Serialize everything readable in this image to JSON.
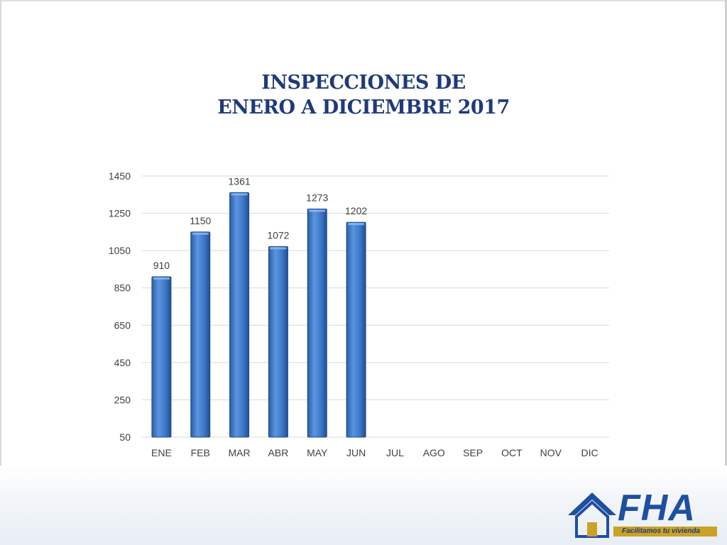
{
  "slide": {
    "title_line1": "INSPECCIONES DE",
    "title_line2": "ENERO A DICIEMBRE 2017"
  },
  "chart_data": {
    "type": "bar",
    "categories": [
      "ENE",
      "FEB",
      "MAR",
      "ABR",
      "MAY",
      "JUN",
      "JUL",
      "AGO",
      "SEP",
      "OCT",
      "NOV",
      "DIC"
    ],
    "values": [
      910,
      1150,
      1361,
      1072,
      1273,
      1202,
      null,
      null,
      null,
      null,
      null,
      null
    ],
    "ylim": [
      50,
      1450
    ],
    "yticks": [
      50,
      250,
      450,
      650,
      850,
      1050,
      1250,
      1450
    ],
    "grid": true,
    "data_labels": true,
    "bar_color": "#3d78c8"
  },
  "logo": {
    "text": "FHA",
    "tagline": "Facilitamos tu vivienda",
    "primary_color": "#1f4fa0",
    "accent_color": "#c9a227"
  }
}
